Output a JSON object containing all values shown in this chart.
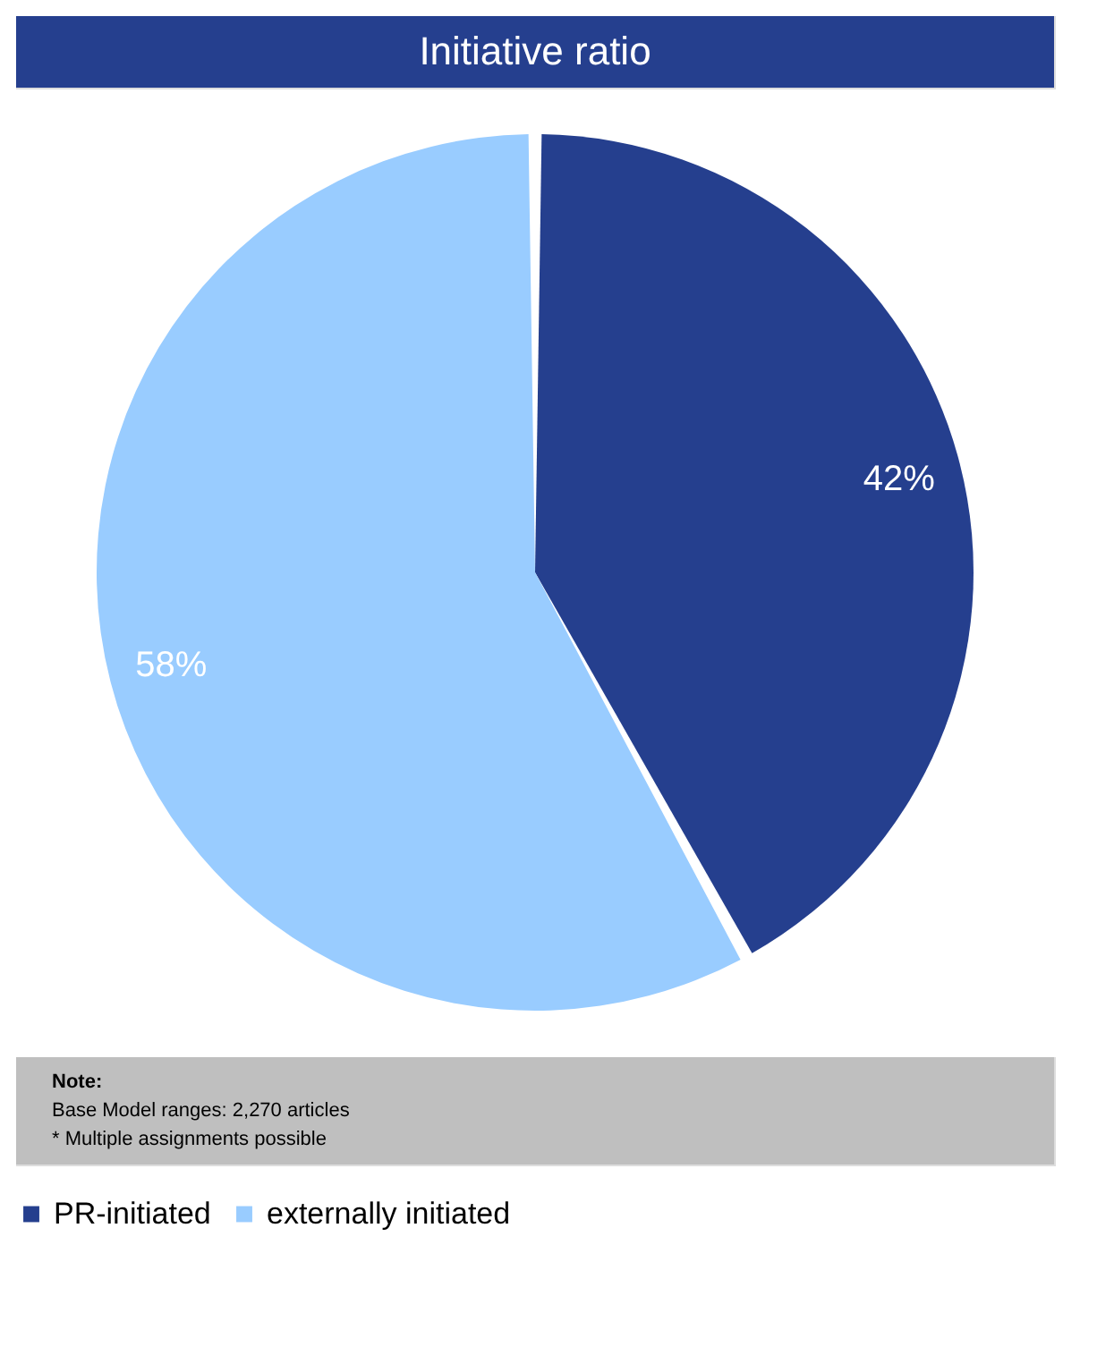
{
  "chart_data": {
    "type": "pie",
    "title": "Initiative ratio",
    "categories": [
      "PR-initiated",
      "externally initiated"
    ],
    "values": [
      42,
      58
    ],
    "colors": [
      "#253f8e",
      "#99ccff"
    ],
    "value_labels": [
      "42%",
      "58%"
    ],
    "legend": "bottom",
    "annotations": [
      "Note:",
      "Base Model ranges: 2,270 articles",
      "* Multiple  assignments possible"
    ]
  }
}
